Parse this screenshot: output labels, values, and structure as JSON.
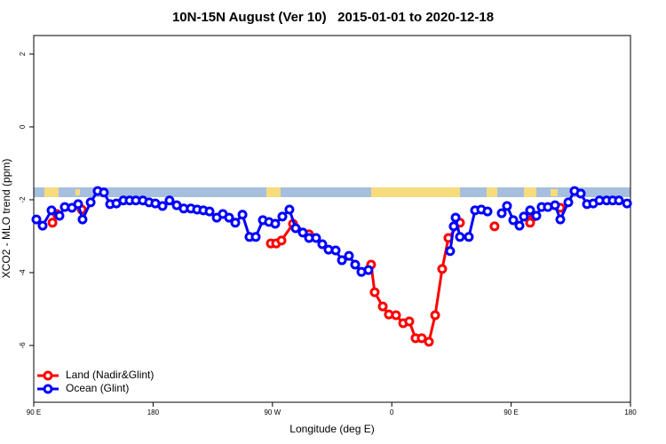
{
  "chart_data": {
    "type": "line",
    "title": "10N-15N August (Ver 10)   2015-01-01 to 2020-12-18",
    "x_label": "Longitude (deg E)",
    "y_label": "XCO2 - MLO trend (ppm)",
    "xlim": [
      90,
      540
    ],
    "ylim": [
      -7.56,
      2.51
    ],
    "xticks": [
      {
        "value": 90,
        "label": "90 E"
      },
      180,
      {
        "value": 270,
        "label": "90 W"
      },
      {
        "value": 360,
        "label": "0"
      },
      {
        "value": 450,
        "label": "90 E"
      },
      {
        "value": 540,
        "label": "180"
      }
    ],
    "yticks": [
      2,
      0,
      -2,
      -4,
      -6
    ],
    "legend": "bottomleft",
    "series": [
      {
        "name": "Land (Nadir&Glint)",
        "color": "#ff0000",
        "x": [
          104.1,
          107.4,
          null,
          126.2,
          null,
          268.8,
          272.8,
          276.8,
          285.5,
          297.6,
          null,
          344.4,
          347.1,
          353.2,
          357.8,
          363.2,
          368.6,
          373.2,
          377.9,
          382.6,
          388.0,
          392.7,
          398.0,
          402.7,
          411.4,
          null,
          437.5,
          null,
          464.3,
          467.0,
          null,
          487.1
        ],
        "values": [
          -2.63,
          -2.39,
          null,
          -2.27,
          null,
          -3.2,
          -3.2,
          -3.12,
          -2.66,
          -2.95,
          null,
          -3.78,
          -4.54,
          -4.93,
          -5.15,
          -5.17,
          -5.39,
          -5.34,
          -5.8,
          -5.8,
          -5.9,
          -5.17,
          -3.9,
          -3.05,
          -2.63,
          null,
          -2.73,
          null,
          -2.63,
          -2.46,
          null,
          -2.22
        ]
      },
      {
        "name": "Ocean (Glint)",
        "color": "#0000ff",
        "x": [
          92.0,
          96.7,
          103.4,
          109.4,
          113.4,
          118.8,
          123.5,
          126.8,
          132.9,
          138.2,
          142.9,
          147.6,
          152.3,
          157.6,
          162.3,
          167.0,
          172.3,
          177.0,
          181.7,
          187.1,
          192.4,
          197.8,
          203.1,
          208.5,
          213.2,
          217.9,
          222.6,
          228.0,
          232.6,
          237.3,
          242.0,
          247.4,
          252.7,
          257.4,
          262.8,
          267.4,
          272.1,
          277.5,
          282.8,
          287.5,
          292.9,
          297.6,
          302.9,
          307.6,
          312.3,
          317.7,
          322.4,
          327.7,
          332.4,
          337.1,
          342.4,
          null,
          404.0,
          406.7,
          408.1,
          411.4,
          418.1,
          422.8,
          427.5,
          432.2,
          null,
          442.9,
          446.9,
          451.6,
          456.3,
          459.6,
          464.3,
          469.0,
          473.0,
          477.7,
          483.1,
          487.1,
          493.1,
          497.8,
          502.5,
          507.2,
          511.9,
          516.6,
          522.0,
          526.6,
          531.3,
          537.4
        ],
        "values": [
          -2.54,
          -2.71,
          -2.29,
          -2.44,
          -2.2,
          -2.22,
          -2.12,
          -2.54,
          -2.07,
          -1.76,
          -1.8,
          -2.12,
          -2.1,
          -2.02,
          -2.02,
          -2.02,
          -2.02,
          -2.07,
          -2.1,
          -2.17,
          -2.02,
          -2.15,
          -2.24,
          -2.24,
          -2.27,
          -2.29,
          -2.32,
          -2.49,
          -2.39,
          -2.49,
          -2.63,
          -2.41,
          -3.02,
          -3.02,
          -2.56,
          -2.61,
          -2.66,
          -2.46,
          -2.27,
          -2.78,
          -2.9,
          -3.05,
          -3.05,
          -3.22,
          -3.37,
          -3.39,
          -3.66,
          -3.54,
          -3.78,
          -3.98,
          -3.93,
          null,
          -3.41,
          -2.73,
          -2.49,
          -3.02,
          -3.02,
          -2.29,
          -2.27,
          -2.32,
          null,
          -2.37,
          -2.17,
          -2.56,
          -2.71,
          -2.46,
          -2.29,
          -2.44,
          -2.2,
          -2.2,
          -2.15,
          -2.54,
          -2.07,
          -1.76,
          -1.83,
          -2.12,
          -2.1,
          -2.02,
          -2.02,
          -2.02,
          -2.02,
          -2.1
        ]
      }
    ]
  }
}
